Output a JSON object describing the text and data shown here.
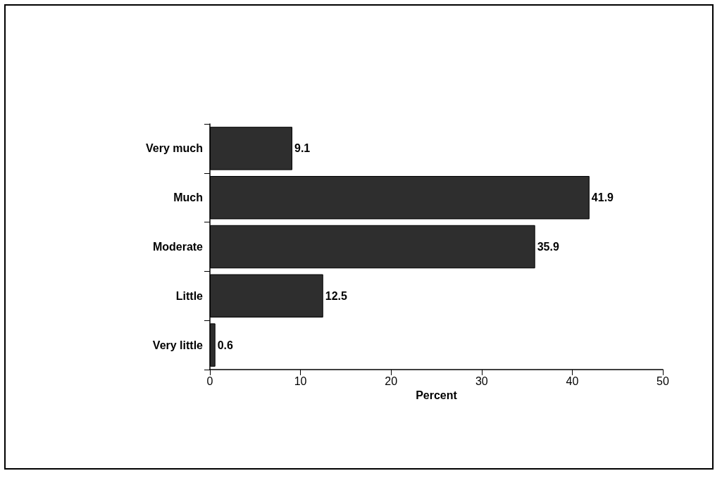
{
  "chart_data": {
    "type": "bar",
    "orientation": "horizontal",
    "xlabel": "Percent",
    "categories": [
      "Very much",
      "Much",
      "Moderate",
      "Little",
      "Very little"
    ],
    "values": [
      9.1,
      41.9,
      35.9,
      12.5,
      0.6
    ],
    "color": "#2e2e2e",
    "xlim": [
      0,
      50
    ],
    "xticks": [
      0,
      10,
      20,
      30,
      40,
      50
    ],
    "data_labels": true
  }
}
